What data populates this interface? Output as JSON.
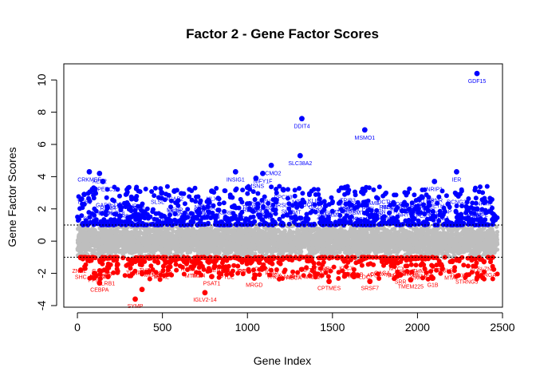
{
  "chart_data": {
    "type": "scatter",
    "title": "Factor 2 - Gene Factor Scores",
    "xlabel": "Gene Index",
    "ylabel": "Gene Factor Scores",
    "xlim": [
      -80,
      2500
    ],
    "ylim": [
      -4.1,
      11
    ],
    "x_ticks": [
      0,
      500,
      1000,
      1500,
      2000,
      2500
    ],
    "y_ticks": [
      -4,
      -2,
      0,
      2,
      4,
      6,
      8,
      10
    ],
    "threshold_lines": [
      1,
      -1
    ],
    "colors": {
      "high": "#0000ff",
      "low": "#ff0000",
      "neutral": "#bebebe"
    },
    "gene_count": 2470,
    "background_band": [
      -1.1,
      1.1
    ],
    "highlighted_high": [
      {
        "x": 2350,
        "y": 10.4,
        "label": "GDF15"
      },
      {
        "x": 1320,
        "y": 7.6,
        "label": "DDIT4"
      },
      {
        "x": 1690,
        "y": 6.9,
        "label": "MSMO1"
      },
      {
        "x": 1310,
        "y": 5.3,
        "label": "SLC38A2"
      },
      {
        "x": 1140,
        "y": 4.7,
        "label": "SCMO2"
      },
      {
        "x": 1090,
        "y": 4.2,
        "label": "NIFY1F"
      },
      {
        "x": 1050,
        "y": 3.9,
        "label": "MSNS"
      },
      {
        "x": 930,
        "y": 4.3,
        "label": "INSIG1"
      },
      {
        "x": 1210,
        "y": 3.2,
        "label": "RPCX3"
      },
      {
        "x": 1590,
        "y": 3.0,
        "label": "TRIB3"
      },
      {
        "x": 2100,
        "y": 3.7,
        "label": "NRIP1"
      },
      {
        "x": 2230,
        "y": 4.3,
        "label": "IER"
      },
      {
        "x": 2230,
        "y": 2.9,
        "label": "DCNG2"
      },
      {
        "x": 570,
        "y": 3.1,
        "label": "ACAP2"
      },
      {
        "x": 70,
        "y": 4.3,
        "label": "CRKMEF"
      },
      {
        "x": 40,
        "y": 2.9,
        "label": "TOB1"
      },
      {
        "x": 130,
        "y": 4.2,
        "label": "XER2"
      },
      {
        "x": 150,
        "y": 3.7,
        "label": "EXPEEC1"
      },
      {
        "x": 250,
        "y": 2.2,
        "label": "PL8"
      },
      {
        "x": 790,
        "y": 3.1,
        "label": "HLX"
      },
      {
        "x": 1060,
        "y": 2.3,
        "label": "MIDC"
      },
      {
        "x": 1460,
        "y": 2.2,
        "label": "IREB"
      },
      {
        "x": 1860,
        "y": 2.3,
        "label": "TH"
      },
      {
        "x": 2010,
        "y": 2.6,
        "label": "EQCPT"
      },
      {
        "x": 2180,
        "y": 2.3,
        "label": "AP"
      },
      {
        "x": 2350,
        "y": 2.0,
        "label": "IM"
      }
    ],
    "highlighted_low": [
      {
        "x": 750,
        "y": -3.2,
        "label": "IGLV2-14"
      },
      {
        "x": 340,
        "y": -3.6,
        "label": "SYMP"
      },
      {
        "x": 380,
        "y": -3.0,
        "label": ""
      },
      {
        "x": 100,
        "y": -2.0,
        "label": "PPIF"
      },
      {
        "x": 130,
        "y": -2.6,
        "label": "CEBPA"
      },
      {
        "x": 180,
        "y": -2.2,
        "label": "LRB1"
      },
      {
        "x": 790,
        "y": -2.2,
        "label": "PSAT1"
      },
      {
        "x": 1040,
        "y": -2.3,
        "label": "MRGD"
      },
      {
        "x": 1480,
        "y": -2.5,
        "label": "CPTMES"
      },
      {
        "x": 1720,
        "y": -2.5,
        "label": "SRSF7"
      },
      {
        "x": 1900,
        "y": -2.1,
        "label": "SRR"
      },
      {
        "x": 1960,
        "y": -2.4,
        "label": "TMEM225"
      },
      {
        "x": 2290,
        "y": -2.1,
        "label": "STRNG5"
      },
      {
        "x": 2090,
        "y": -2.3,
        "label": "G1B"
      },
      {
        "x": 880,
        "y": -1.8,
        "label": "PTDL"
      },
      {
        "x": 20,
        "y": -1.8,
        "label": "SHC"
      },
      {
        "x": 420,
        "y": -1.9,
        "label": ""
      }
    ]
  }
}
